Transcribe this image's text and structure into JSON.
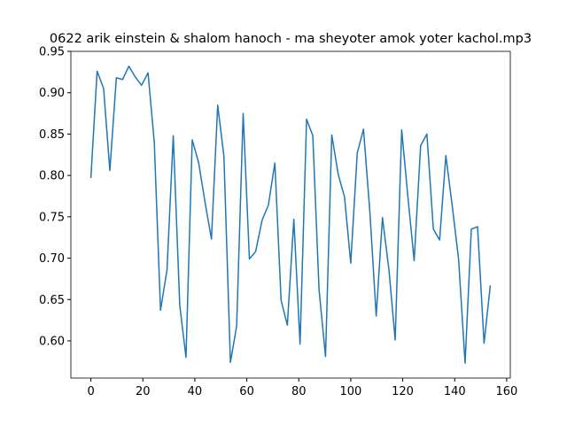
{
  "chart_data": {
    "type": "line",
    "title": "0622 arik einstein & shalom hanoch - ma sheyoter amok yoter kachol.mp3",
    "x": [
      0,
      2.4,
      4.9,
      7.3,
      9.8,
      12.2,
      14.6,
      17.1,
      19.5,
      22.0,
      24.4,
      26.8,
      29.3,
      31.7,
      34.2,
      36.6,
      39.0,
      41.5,
      43.9,
      46.4,
      48.8,
      51.2,
      53.7,
      56.1,
      58.6,
      61.0,
      63.4,
      65.9,
      68.3,
      70.8,
      73.2,
      75.6,
      78.1,
      80.5,
      83.0,
      85.4,
      87.8,
      90.3,
      92.7,
      95.2,
      97.6,
      100.0,
      102.5,
      104.9,
      107.4,
      109.8,
      112.2,
      114.7,
      117.1,
      119.6,
      122.0,
      124.4,
      126.9,
      129.3,
      131.8,
      134.2,
      136.6,
      139.1,
      141.5,
      144.0,
      146.4,
      148.8,
      151.3,
      153.7
    ],
    "series": [
      {
        "color": "#1f77b4",
        "values": [
          0.797,
          0.926,
          0.905,
          0.806,
          0.918,
          0.916,
          0.932,
          0.919,
          0.909,
          0.924,
          0.84,
          0.637,
          0.686,
          0.848,
          0.643,
          0.58,
          0.843,
          0.815,
          0.768,
          0.723,
          0.885,
          0.823,
          0.574,
          0.618,
          0.875,
          0.699,
          0.708,
          0.746,
          0.764,
          0.815,
          0.649,
          0.619,
          0.747,
          0.596,
          0.868,
          0.848,
          0.662,
          0.581,
          0.849,
          0.801,
          0.774,
          0.694,
          0.827,
          0.856,
          0.754,
          0.63,
          0.749,
          0.686,
          0.601,
          0.855,
          0.774,
          0.697,
          0.836,
          0.85,
          0.735,
          0.722,
          0.824,
          0.762,
          0.699,
          0.573,
          0.735,
          0.738,
          0.597,
          0.667
        ]
      }
    ],
    "xlim": [
      -7.7,
      161.4
    ],
    "ylim": [
      0.555,
      0.95
    ],
    "xticks": [
      0,
      20,
      40,
      60,
      80,
      100,
      120,
      140,
      160
    ],
    "yticks": [
      {
        "value": 0.6,
        "label": "0.60"
      },
      {
        "value": 0.65,
        "label": "0.65"
      },
      {
        "value": 0.7,
        "label": "0.70"
      },
      {
        "value": 0.75,
        "label": "0.75"
      },
      {
        "value": 0.8,
        "label": "0.80"
      },
      {
        "value": 0.85,
        "label": "0.85"
      },
      {
        "value": 0.9,
        "label": "0.90"
      },
      {
        "value": 0.95,
        "label": "0.95"
      }
    ]
  }
}
